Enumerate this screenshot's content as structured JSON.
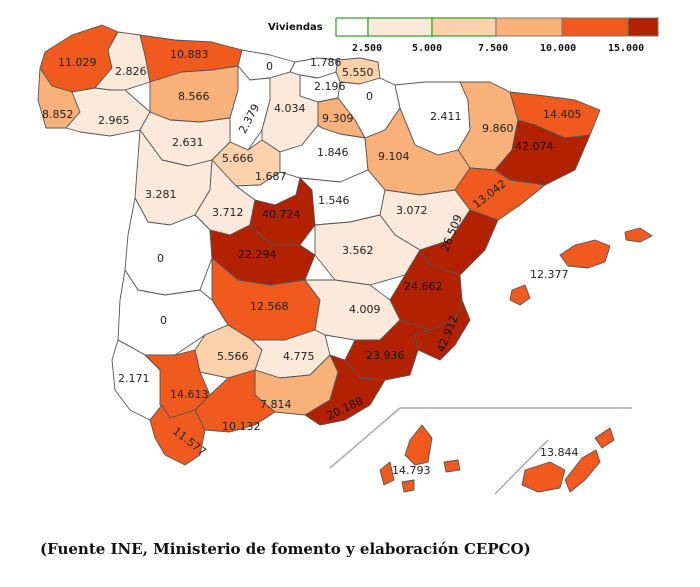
{
  "legend": {
    "title": "Viviendas",
    "ticks": [
      "2.500",
      "5.000",
      "7.500",
      "10.000",
      "15.000"
    ],
    "colors": [
      "#ffffff",
      "#fde9d9",
      "#fcd2ac",
      "#f9b17a",
      "#f05a1f",
      "#b22200"
    ]
  },
  "caption": "(Fuente INE, Ministerio de fomento y elaboración CEPCO)",
  "provinces": [
    {
      "value": "11.029",
      "level": 4
    },
    {
      "value": "2.826",
      "level": 1
    },
    {
      "value": "10.883",
      "level": 4
    },
    {
      "value": "0",
      "level": 0
    },
    {
      "value": "1.786",
      "level": 0
    },
    {
      "value": "5.550",
      "level": 2
    },
    {
      "value": "2.196",
      "level": 0
    },
    {
      "value": "0",
      "level": 0
    },
    {
      "value": "8.566",
      "level": 3
    },
    {
      "value": "2.379",
      "level": 0
    },
    {
      "value": "4.034",
      "level": 1
    },
    {
      "value": "9.309",
      "level": 3
    },
    {
      "value": "8.852",
      "level": 3
    },
    {
      "value": "2.965",
      "level": 1
    },
    {
      "value": "2.411",
      "level": 0
    },
    {
      "value": "9.860",
      "level": 3
    },
    {
      "value": "14.405",
      "level": 4
    },
    {
      "value": "2.631",
      "level": 1
    },
    {
      "value": "5.666",
      "level": 2
    },
    {
      "value": "1.846",
      "level": 0
    },
    {
      "value": "9.104",
      "level": 3
    },
    {
      "value": "42.074",
      "level": 5
    },
    {
      "value": "1.687",
      "level": 0
    },
    {
      "value": "13.042",
      "level": 4
    },
    {
      "value": "3.281",
      "level": 1
    },
    {
      "value": "3.712",
      "level": 1
    },
    {
      "value": "40.724",
      "level": 5
    },
    {
      "value": "1.546",
      "level": 0
    },
    {
      "value": "3.072",
      "level": 1
    },
    {
      "value": "26.509",
      "level": 5
    },
    {
      "value": "0",
      "level": 0
    },
    {
      "value": "22.294",
      "level": 5
    },
    {
      "value": "3.562",
      "level": 1
    },
    {
      "value": "12.377",
      "level": 4
    },
    {
      "value": "24.662",
      "level": 5
    },
    {
      "value": "12.568",
      "level": 4
    },
    {
      "value": "0",
      "level": 0
    },
    {
      "value": "4.009",
      "level": 1
    },
    {
      "value": "42.912",
      "level": 5
    },
    {
      "value": "5.566",
      "level": 2
    },
    {
      "value": "4.775",
      "level": 1
    },
    {
      "value": "23.936",
      "level": 5
    },
    {
      "value": "2.171",
      "level": 0
    },
    {
      "value": "14.613",
      "level": 4
    },
    {
      "value": "7.814",
      "level": 3
    },
    {
      "value": "20.188",
      "level": 5
    },
    {
      "value": "11.577",
      "level": 4
    },
    {
      "value": "10.132",
      "level": 4
    },
    {
      "value": "14.793",
      "level": 4
    },
    {
      "value": "13.844",
      "level": 4
    }
  ]
}
